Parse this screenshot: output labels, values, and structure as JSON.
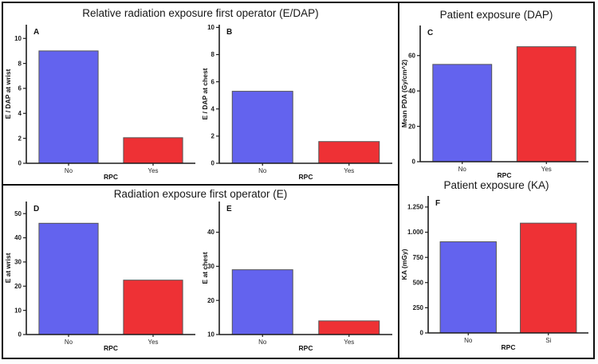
{
  "sections": {
    "top_left_title": "Relative radiation exposure first operator (E/DAP)",
    "bottom_left_title": "Radiation exposure first operator (E)",
    "right_top_title": "Patient exposure (DAP)",
    "right_bottom_title": "Patient exposure (KA)"
  },
  "colors": {
    "bar_no": "#6363EE",
    "bar_yes": "#EE3135",
    "bar_outline": "#555555",
    "axis": "#1c1c1c",
    "text": "#111111",
    "frame": "#0d0d0d"
  },
  "chart_data": [
    {
      "panel": "A",
      "type": "bar",
      "categories": [
        "No",
        "Yes"
      ],
      "values": [
        9.0,
        2.05
      ],
      "bar_colors": [
        "#6363EE",
        "#EE3135"
      ],
      "xlabel": "RPC",
      "ylabel": "E / DAP at wrist",
      "yticks": [
        0,
        2,
        4,
        6,
        8,
        10
      ],
      "ytick_labels": [
        "0",
        "2",
        "4",
        "6",
        "8",
        "10"
      ],
      "ylim": [
        0,
        11.1
      ],
      "grid": false
    },
    {
      "panel": "B",
      "type": "bar",
      "categories": [
        "No",
        "Yes"
      ],
      "values": [
        5.3,
        1.6
      ],
      "bar_colors": [
        "#6363EE",
        "#EE3135"
      ],
      "xlabel": "RPC",
      "ylabel": "E / DAP at chest",
      "yticks": [
        0,
        2,
        4,
        6,
        8,
        10
      ],
      "ytick_labels": [
        "0",
        "2",
        "4",
        "6",
        "8",
        "10"
      ],
      "ylim": [
        0,
        10.2
      ],
      "grid": false
    },
    {
      "panel": "C",
      "type": "bar",
      "categories": [
        "No",
        "Yes"
      ],
      "values": [
        55,
        65
      ],
      "bar_colors": [
        "#6363EE",
        "#EE3135"
      ],
      "xlabel": "RPC",
      "ylabel": "Mean PDA (Gy/cm^2)",
      "yticks": [
        0,
        20,
        40,
        60
      ],
      "ytick_labels": [
        "0",
        "20",
        "40",
        "60"
      ],
      "ylim": [
        0,
        77
      ],
      "grid": false
    },
    {
      "panel": "D",
      "type": "bar",
      "categories": [
        "No",
        "Yes"
      ],
      "values": [
        46,
        22.5
      ],
      "bar_colors": [
        "#6363EE",
        "#EE3135"
      ],
      "xlabel": "RPC",
      "ylabel": "E at wrist",
      "yticks": [
        0,
        10,
        20,
        30,
        40,
        50
      ],
      "ytick_labels": [
        "0",
        "10",
        "20",
        "30",
        "40",
        "50"
      ],
      "ylim": [
        0,
        55
      ],
      "grid": false
    },
    {
      "panel": "E",
      "type": "bar",
      "categories": [
        "No",
        "Yes"
      ],
      "values": [
        29,
        14
      ],
      "bar_colors": [
        "#6363EE",
        "#EE3135"
      ],
      "xlabel": "RPC",
      "ylabel": "E at chest",
      "yticks": [
        10,
        20,
        30,
        40
      ],
      "ytick_labels": [
        "10",
        "20",
        "30",
        "40"
      ],
      "ylim": [
        10,
        49
      ],
      "grid": false
    },
    {
      "panel": "F",
      "type": "bar",
      "categories": [
        "No",
        "Si"
      ],
      "values": [
        905,
        1090
      ],
      "bar_colors": [
        "#6363EE",
        "#EE3135"
      ],
      "xlabel": "RPC",
      "ylabel": "KA (mGy)",
      "yticks": [
        0,
        250,
        500,
        750,
        1000,
        1250
      ],
      "ytick_labels": [
        "0",
        "250",
        "500",
        "750",
        "1.000",
        "1.250"
      ],
      "ylim": [
        0,
        1360
      ],
      "grid": false
    }
  ]
}
